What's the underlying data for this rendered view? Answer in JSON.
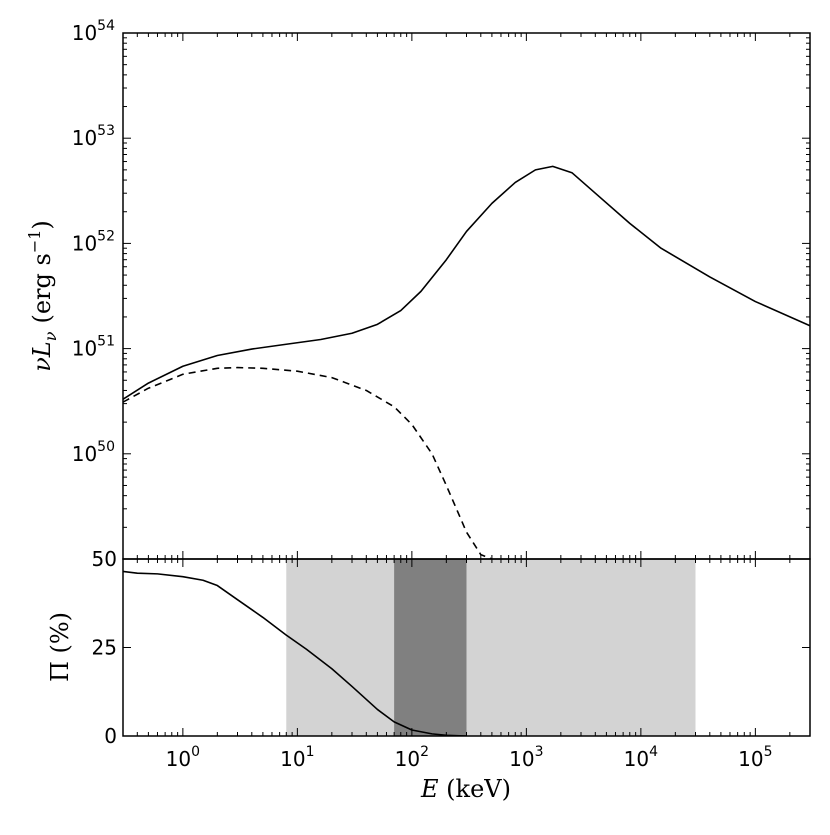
{
  "chart_data": [
    {
      "type": "line",
      "panel": "top",
      "ylabel": "νL_ν (erg s⁻¹)",
      "ylabel_parts": {
        "main": "νL",
        "sub": "ν",
        "unit": "(erg s",
        "sup": "−1",
        "close": ")"
      },
      "x_scale": "log",
      "y_scale": "log",
      "xlim": [
        0.3,
        300000
      ],
      "ylim": [
        1e+49,
        1e+54
      ],
      "y_ticks": [
        {
          "value": 1e+50,
          "base": "10",
          "exp": "50"
        },
        {
          "value": 1e+51,
          "base": "10",
          "exp": "51"
        },
        {
          "value": 1e+52,
          "base": "10",
          "exp": "52"
        },
        {
          "value": 1e+53,
          "base": "10",
          "exp": "53"
        },
        {
          "value": 1e+54,
          "base": "10",
          "exp": "54"
        }
      ],
      "grid": false,
      "series": [
        {
          "style": "solid",
          "x": [
            0.3,
            0.5,
            1,
            2,
            4,
            8,
            16,
            30,
            50,
            80,
            120,
            200,
            300,
            500,
            800,
            1200,
            1700,
            2500,
            4000,
            8000,
            15000,
            40000,
            100000,
            300000
          ],
          "y": [
            3.3e+50,
            4.7e+50,
            6.8e+50,
            8.6e+50,
            9.9e+50,
            1.1e+51,
            1.22e+51,
            1.4e+51,
            1.7e+51,
            2.3e+51,
            3.5e+51,
            7e+51,
            1.3e+52,
            2.4e+52,
            3.8e+52,
            5e+52,
            5.4e+52,
            4.7e+52,
            3e+52,
            1.55e+52,
            9e+51,
            4.8e+51,
            2.8e+51,
            1.65e+51
          ]
        },
        {
          "style": "dashed",
          "x": [
            0.3,
            0.5,
            1,
            2,
            3,
            5,
            10,
            20,
            40,
            70,
            100,
            150,
            200,
            300,
            400,
            500
          ],
          "y": [
            3.1e+50,
            4.2e+50,
            5.7e+50,
            6.5e+50,
            6.6e+50,
            6.5e+50,
            6.1e+50,
            5.3e+50,
            4e+50,
            2.8e+50,
            1.9e+50,
            1e+50,
            5e+49,
            1.8e+49,
            1.1e+49,
            1e+49
          ]
        }
      ]
    },
    {
      "type": "line",
      "panel": "bottom",
      "xlabel": "E (keV)",
      "xlabel_parts": {
        "var": "E",
        "unit": " (keV)"
      },
      "ylabel": "Π (%)",
      "x_scale": "log",
      "xlim": [
        0.3,
        300000
      ],
      "ylim": [
        0,
        50
      ],
      "y_ticks": [
        "0",
        "25",
        "50"
      ],
      "x_ticks": [
        {
          "value": 1,
          "base": "10",
          "exp": "0"
        },
        {
          "value": 10,
          "base": "10",
          "exp": "1"
        },
        {
          "value": 100,
          "base": "10",
          "exp": "2"
        },
        {
          "value": 1000,
          "base": "10",
          "exp": "3"
        },
        {
          "value": 10000,
          "base": "10",
          "exp": "4"
        },
        {
          "value": 100000,
          "base": "10",
          "exp": "5"
        }
      ],
      "bands": [
        {
          "x_range": [
            8,
            30000
          ],
          "color": "#d3d3d3"
        },
        {
          "x_range": [
            70,
            300
          ],
          "color": "#808080"
        }
      ],
      "series": [
        {
          "style": "solid",
          "x": [
            0.3,
            0.4,
            0.6,
            1,
            1.5,
            2,
            3,
            5,
            8,
            12,
            20,
            30,
            50,
            70,
            100,
            150,
            200,
            300
          ],
          "y": [
            46.5,
            46,
            45.8,
            45,
            44,
            42.5,
            38.5,
            33.5,
            28.5,
            24.5,
            19,
            14,
            7.5,
            4,
            1.7,
            0.6,
            0.2,
            0
          ]
        }
      ]
    }
  ]
}
